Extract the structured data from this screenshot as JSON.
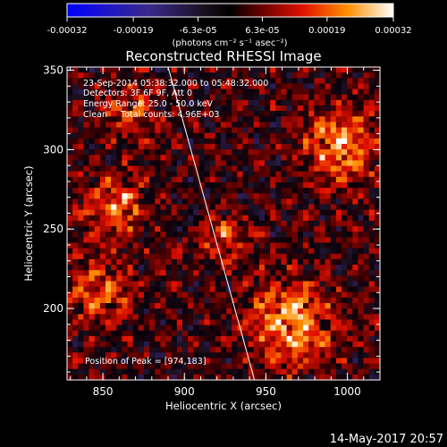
{
  "colorbar": {
    "ticks": [
      "-0.00032",
      "-0.00019",
      "-6.3e-05",
      "6.3e-05",
      "0.00019",
      "0.00032"
    ],
    "tick_values": [
      -0.00032,
      -0.00019,
      -6.3e-05,
      6.3e-05,
      0.00019,
      0.00032
    ],
    "unit_label": "(photons cm⁻² s⁻¹ asec⁻²)",
    "range": [
      -0.00032,
      0.00032
    ]
  },
  "chart_data": {
    "type": "heatmap",
    "title": "Reconstructed RHESSI Image",
    "xlabel": "Heliocentric X (arcsec)",
    "ylabel": "Heliocentric Y (arcsec)",
    "xlim": [
      828,
      1020
    ],
    "ylim": [
      155,
      352
    ],
    "xticks": [
      850,
      900,
      950,
      1000
    ],
    "yticks": [
      200,
      250,
      300,
      350
    ],
    "annotations": [
      "23-Sep-2014 05:38:32.000 to 05:48:32.000",
      "Detectors: 3F 6F 9F, Att 0",
      "Energy Range: 25.0 - 50.0 keV",
      "Clean     Total counts: 4.96E+03"
    ],
    "peak_label": "Position of Peak = [974,183]",
    "peak": [
      974,
      183
    ],
    "limb_line": [
      [
        890,
        352
      ],
      [
        943,
        155
      ]
    ]
  },
  "footer": {
    "timestamp": "14-May-2017 20:57"
  }
}
